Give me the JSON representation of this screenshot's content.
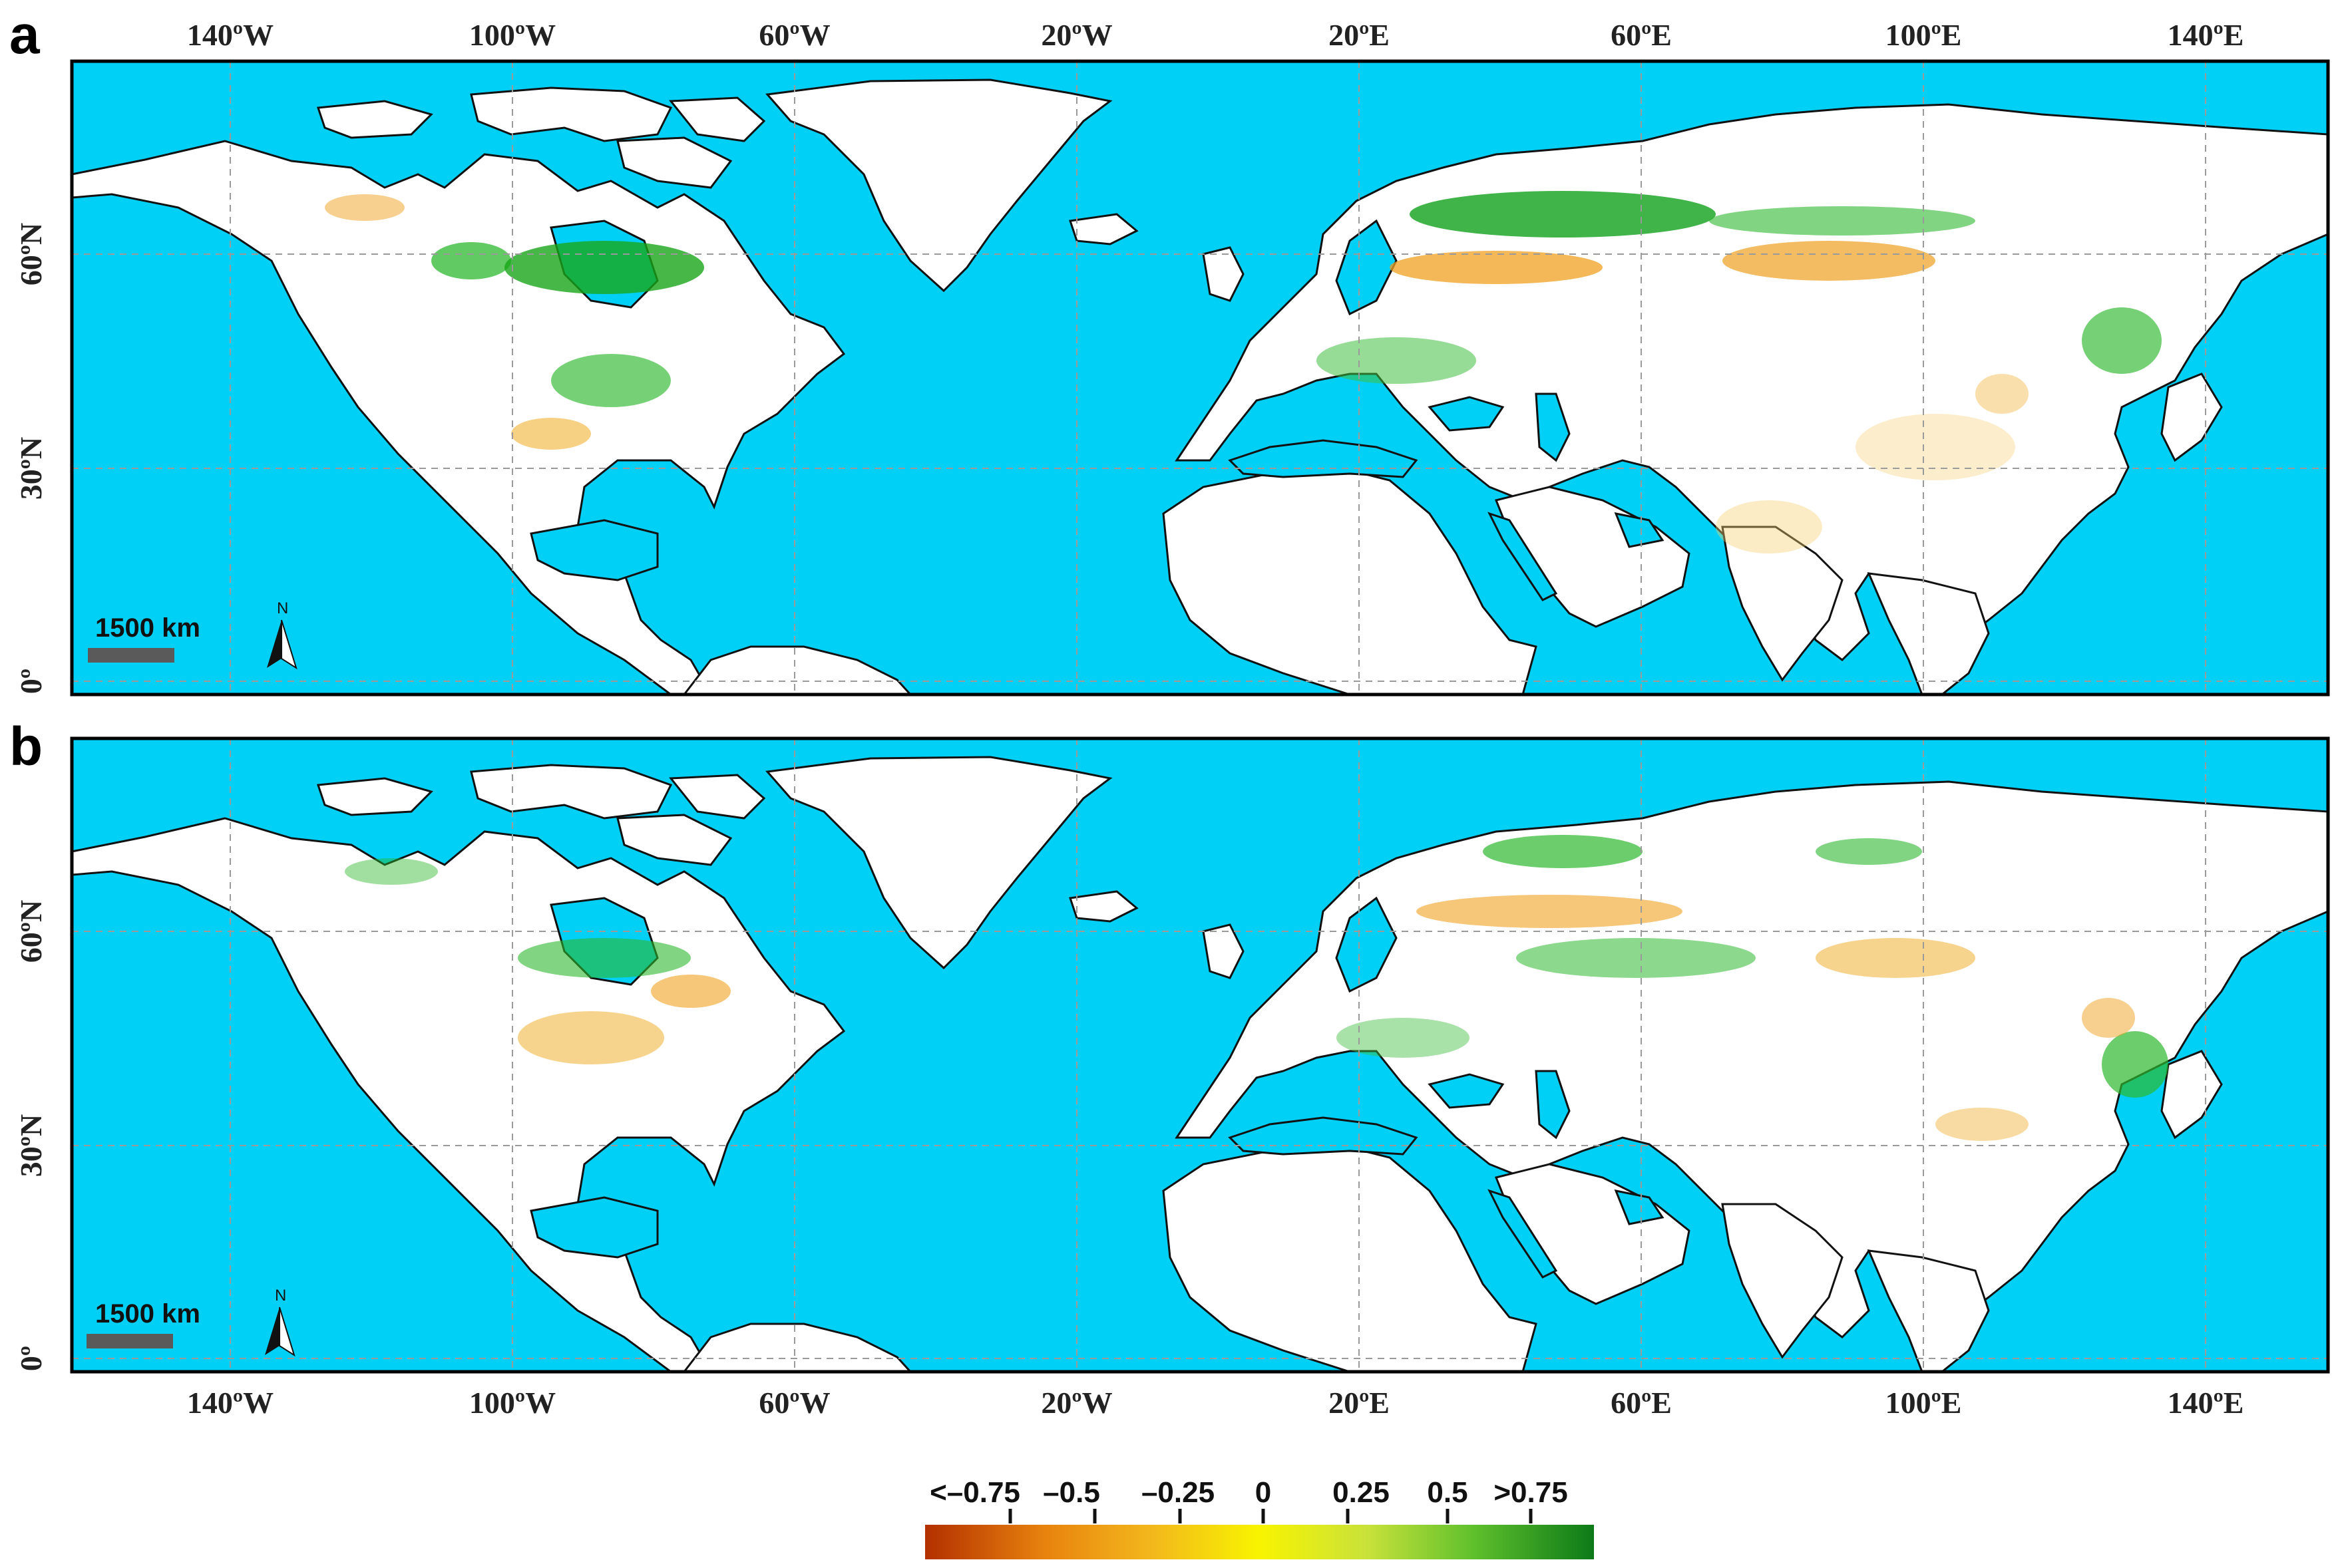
{
  "panels": [
    {
      "letter": "a",
      "scalebar": "1500 km",
      "north": "N"
    },
    {
      "letter": "b",
      "scalebar": "1500 km",
      "north": "N"
    }
  ],
  "lon_labels": [
    "140ºW",
    "100ºW",
    "60ºW",
    "20ºW",
    "20ºE",
    "60ºE",
    "100ºE",
    "140ºE"
  ],
  "lat_labels": [
    "60ºN",
    "30ºN",
    "0º"
  ],
  "legend": {
    "labels": [
      "<–0.75",
      "–0.5",
      "–0.25",
      "0",
      "0.25",
      "0.5",
      ">0.75"
    ],
    "colors": [
      "#b33000",
      "#e8830e",
      "#f3b81c",
      "#f5f500",
      "#c9e23a",
      "#5fc02c",
      "#0c7a18"
    ]
  },
  "colors": {
    "ocean": "#00d0f5",
    "land": "#ffffff",
    "positive": "#2db82d",
    "negative": "#f0a020",
    "grid": "#9a9a9a"
  }
}
